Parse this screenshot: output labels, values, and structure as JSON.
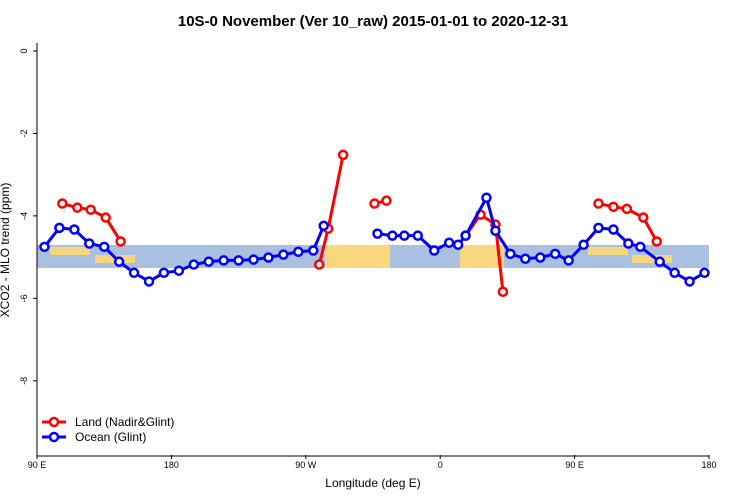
{
  "chart_data": {
    "type": "line",
    "title": "10S-0 November (Ver 10_raw)   2015-01-01 to 2020-12-31",
    "x_label": "Longitude (deg E)",
    "y_label": "XCO2 - MLO trend (ppm)",
    "xlim": [
      90,
      540
    ],
    "xticks": [
      {
        "value": 90,
        "label": "90 E"
      },
      {
        "value": 180,
        "label": "180"
      },
      {
        "value": 270,
        "label": "90 W"
      },
      {
        "value": 360,
        "label": "0"
      },
      {
        "value": 450,
        "label": "90 E"
      },
      {
        "value": 540,
        "label": "180"
      }
    ],
    "ylim": [
      -9.8,
      0.2
    ],
    "yticks": [
      0,
      -2,
      -4,
      -6,
      -8
    ],
    "legend": "bottom-left",
    "series": [
      {
        "name": "Land (Nadir&Glint)",
        "color": "#ff0000",
        "x": [
          107,
          117,
          126,
          136,
          146,
          null,
          279,
          285,
          295,
          null,
          316,
          324,
          null,
          377,
          387,
          397,
          402,
          null,
          466,
          476,
          485,
          496,
          505
        ],
        "values": [
          -3.7,
          -3.8,
          -3.85,
          -4.04,
          -4.62,
          null,
          -5.18,
          -4.31,
          -2.52,
          null,
          -3.7,
          -3.63,
          null,
          -4.48,
          -3.97,
          -4.21,
          -5.84,
          null,
          -3.7,
          -3.78,
          -3.83,
          -4.04,
          -4.62
        ]
      },
      {
        "name": "Ocean (Glint)",
        "color": "#0000ff",
        "x": [
          95,
          105,
          115,
          125,
          135,
          145,
          155,
          165,
          175,
          185,
          195,
          205,
          215,
          225,
          235,
          245,
          255,
          265,
          275,
          282,
          null,
          318,
          328,
          336,
          345,
          356,
          366,
          372,
          377,
          391,
          397,
          407,
          417,
          427,
          437,
          446,
          456,
          466,
          476,
          486,
          494,
          507,
          517,
          527,
          537
        ],
        "values": [
          -4.75,
          -4.29,
          -4.33,
          -4.67,
          -4.75,
          -5.11,
          -5.38,
          -5.59,
          -5.38,
          -5.33,
          -5.18,
          -5.11,
          -5.08,
          -5.08,
          -5.06,
          -5.01,
          -4.94,
          -4.87,
          -4.84,
          -4.24,
          null,
          -4.43,
          -4.48,
          -4.48,
          -4.48,
          -4.84,
          -4.65,
          -4.7,
          -4.48,
          -3.56,
          -4.36,
          -4.92,
          -5.04,
          -5.01,
          -4.92,
          -5.08,
          -4.7,
          -4.29,
          -4.33,
          -4.67,
          -4.75,
          -5.11,
          -5.38,
          -5.59,
          -5.38
        ]
      }
    ]
  }
}
